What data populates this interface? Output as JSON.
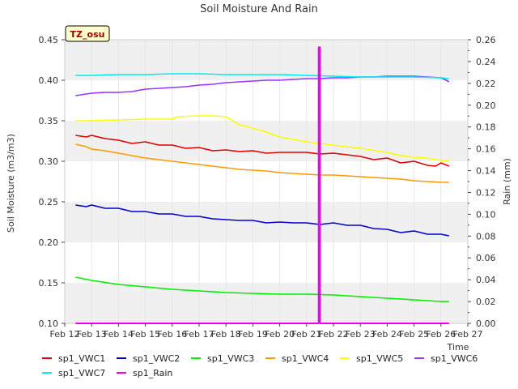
{
  "chart_data": {
    "type": "line",
    "title": "Soil Moisture And Rain",
    "site_label": "TZ_osu",
    "xlabel": "Time",
    "ylabel": "Soil Moisture (m3/m3)",
    "y2label": "Rain (mm)",
    "xlim": [
      12,
      27
    ],
    "ylim": [
      0.1,
      0.45
    ],
    "y2lim": [
      0.0,
      0.26
    ],
    "x_ticks": [
      {
        "v": 12,
        "label": "Feb 12"
      },
      {
        "v": 13,
        "label": "Feb 13"
      },
      {
        "v": 14,
        "label": "Feb 14"
      },
      {
        "v": 15,
        "label": "Feb 15"
      },
      {
        "v": 16,
        "label": "Feb 16"
      },
      {
        "v": 17,
        "label": "Feb 17"
      },
      {
        "v": 18,
        "label": "Feb 18"
      },
      {
        "v": 19,
        "label": "Feb 19"
      },
      {
        "v": 20,
        "label": "Feb 20"
      },
      {
        "v": 21,
        "label": "Feb 21"
      },
      {
        "v": 22,
        "label": "Feb 22"
      },
      {
        "v": 23,
        "label": "Feb 23"
      },
      {
        "v": 24,
        "label": "Feb 24"
      },
      {
        "v": 25,
        "label": "Feb 25"
      },
      {
        "v": 26,
        "label": "Feb 26"
      },
      {
        "v": 27,
        "label": "Feb 27"
      }
    ],
    "y_ticks": [
      {
        "v": 0.1,
        "label": "0.10"
      },
      {
        "v": 0.15,
        "label": "0.15"
      },
      {
        "v": 0.2,
        "label": "0.20"
      },
      {
        "v": 0.25,
        "label": "0.25"
      },
      {
        "v": 0.3,
        "label": "0.30"
      },
      {
        "v": 0.35,
        "label": "0.35"
      },
      {
        "v": 0.4,
        "label": "0.40"
      },
      {
        "v": 0.45,
        "label": "0.45"
      }
    ],
    "y2_ticks": [
      {
        "v": 0.0,
        "label": "0.00"
      },
      {
        "v": 0.02,
        "label": "0.02"
      },
      {
        "v": 0.04,
        "label": "0.04"
      },
      {
        "v": 0.06,
        "label": "0.06"
      },
      {
        "v": 0.08,
        "label": "0.08"
      },
      {
        "v": 0.1,
        "label": "0.10"
      },
      {
        "v": 0.12,
        "label": "0.12"
      },
      {
        "v": 0.14,
        "label": "0.14"
      },
      {
        "v": 0.16,
        "label": "0.16"
      },
      {
        "v": 0.18,
        "label": "0.18"
      },
      {
        "v": 0.2,
        "label": "0.20"
      },
      {
        "v": 0.22,
        "label": "0.22"
      },
      {
        "v": 0.24,
        "label": "0.24"
      },
      {
        "v": 0.26,
        "label": "0.26"
      }
    ],
    "grid": true,
    "band_colors": [
      "#f0f0f0",
      "#ffffff"
    ],
    "legend_position": "bottom",
    "series": [
      {
        "name": "sp1_VWC1",
        "color": "#dd0000",
        "axis": "left",
        "x": [
          12.4,
          12.8,
          13.0,
          13.5,
          14.0,
          14.5,
          15.0,
          15.5,
          16.0,
          16.5,
          17.0,
          17.5,
          18.0,
          18.5,
          19.0,
          19.5,
          20.0,
          20.5,
          21.0,
          21.5,
          22.0,
          22.5,
          23.0,
          23.5,
          24.0,
          24.5,
          25.0,
          25.5,
          25.8,
          26.0,
          26.3
        ],
        "y": [
          0.332,
          0.33,
          0.332,
          0.328,
          0.326,
          0.322,
          0.324,
          0.32,
          0.32,
          0.316,
          0.317,
          0.313,
          0.314,
          0.312,
          0.313,
          0.31,
          0.311,
          0.311,
          0.311,
          0.309,
          0.31,
          0.308,
          0.306,
          0.302,
          0.304,
          0.298,
          0.3,
          0.295,
          0.294,
          0.298,
          0.294
        ]
      },
      {
        "name": "sp1_VWC2",
        "color": "#0000cc",
        "axis": "left",
        "x": [
          12.4,
          12.8,
          13.0,
          13.5,
          14.0,
          14.5,
          15.0,
          15.5,
          16.0,
          16.5,
          17.0,
          17.5,
          18.0,
          18.5,
          19.0,
          19.5,
          20.0,
          20.5,
          21.0,
          21.5,
          22.0,
          22.5,
          23.0,
          23.5,
          24.0,
          24.5,
          25.0,
          25.5,
          26.0,
          26.3
        ],
        "y": [
          0.246,
          0.244,
          0.246,
          0.242,
          0.242,
          0.238,
          0.238,
          0.235,
          0.235,
          0.232,
          0.232,
          0.229,
          0.228,
          0.227,
          0.227,
          0.224,
          0.225,
          0.224,
          0.224,
          0.222,
          0.224,
          0.221,
          0.221,
          0.217,
          0.216,
          0.212,
          0.214,
          0.21,
          0.21,
          0.208
        ]
      },
      {
        "name": "sp1_VWC3",
        "color": "#00ee00",
        "axis": "left",
        "x": [
          12.4,
          13.0,
          14.0,
          15.0,
          16.0,
          17.0,
          18.0,
          19.0,
          20.0,
          21.0,
          22.0,
          23.0,
          24.0,
          25.0,
          26.0,
          26.3
        ],
        "y": [
          0.157,
          0.153,
          0.148,
          0.145,
          0.142,
          0.14,
          0.138,
          0.137,
          0.136,
          0.136,
          0.135,
          0.133,
          0.131,
          0.129,
          0.127,
          0.127
        ]
      },
      {
        "name": "sp1_VWC4",
        "color": "#ff9900",
        "axis": "left",
        "x": [
          12.4,
          12.8,
          13.0,
          13.5,
          14.0,
          14.5,
          15.0,
          15.5,
          16.0,
          16.5,
          17.0,
          17.5,
          18.0,
          18.5,
          19.0,
          19.5,
          20.0,
          20.5,
          21.0,
          21.5,
          22.0,
          22.5,
          23.0,
          23.5,
          24.0,
          24.5,
          25.0,
          25.5,
          26.0,
          26.3
        ],
        "y": [
          0.321,
          0.318,
          0.315,
          0.313,
          0.31,
          0.307,
          0.304,
          0.302,
          0.3,
          0.298,
          0.296,
          0.294,
          0.292,
          0.29,
          0.289,
          0.288,
          0.286,
          0.285,
          0.284,
          0.283,
          0.283,
          0.282,
          0.281,
          0.28,
          0.279,
          0.278,
          0.276,
          0.275,
          0.274,
          0.274
        ]
      },
      {
        "name": "sp1_VWC5",
        "color": "#ffff00",
        "axis": "left",
        "x": [
          12.4,
          13.0,
          14.0,
          15.0,
          16.0,
          16.2,
          17.0,
          17.5,
          18.0,
          18.5,
          19.0,
          19.5,
          20.0,
          21.0,
          22.0,
          23.0,
          24.0,
          24.5,
          25.0,
          25.5,
          26.0,
          26.3
        ],
        "y": [
          0.35,
          0.35,
          0.351,
          0.352,
          0.352,
          0.355,
          0.356,
          0.356,
          0.355,
          0.345,
          0.341,
          0.336,
          0.33,
          0.324,
          0.32,
          0.316,
          0.311,
          0.307,
          0.305,
          0.304,
          0.301,
          0.3
        ]
      },
      {
        "name": "sp1_VWC6",
        "color": "#9933ff",
        "axis": "left",
        "x": [
          12.4,
          12.8,
          13.0,
          13.5,
          14.0,
          14.5,
          15.0,
          15.5,
          16.0,
          16.5,
          17.0,
          17.5,
          18.0,
          18.5,
          19.0,
          19.5,
          20.0,
          20.5,
          21.0,
          21.5,
          22.0,
          22.5,
          23.0,
          23.5,
          24.0,
          24.5,
          25.0,
          25.5,
          26.0,
          26.2,
          26.3
        ],
        "y": [
          0.381,
          0.383,
          0.384,
          0.385,
          0.385,
          0.386,
          0.389,
          0.39,
          0.391,
          0.392,
          0.394,
          0.395,
          0.397,
          0.398,
          0.399,
          0.4,
          0.4,
          0.401,
          0.402,
          0.402,
          0.403,
          0.403,
          0.404,
          0.404,
          0.405,
          0.405,
          0.405,
          0.404,
          0.403,
          0.4,
          0.398
        ]
      },
      {
        "name": "sp1_VWC7",
        "color": "#00eeee",
        "axis": "left",
        "x": [
          12.4,
          13.0,
          14.0,
          15.0,
          16.0,
          17.0,
          18.0,
          19.0,
          20.0,
          21.0,
          22.0,
          23.0,
          24.0,
          25.0,
          26.0,
          26.3
        ],
        "y": [
          0.406,
          0.406,
          0.407,
          0.407,
          0.408,
          0.408,
          0.407,
          0.407,
          0.407,
          0.406,
          0.405,
          0.404,
          0.404,
          0.404,
          0.403,
          0.402
        ]
      },
      {
        "name": "sp1_Rain",
        "color": "#ee00ee",
        "axis": "right",
        "x": [
          12.4,
          21.45,
          21.45,
          21.5,
          21.5,
          26.3
        ],
        "y": [
          0.0,
          0.0,
          0.253,
          0.253,
          0.0,
          0.0
        ]
      }
    ]
  }
}
